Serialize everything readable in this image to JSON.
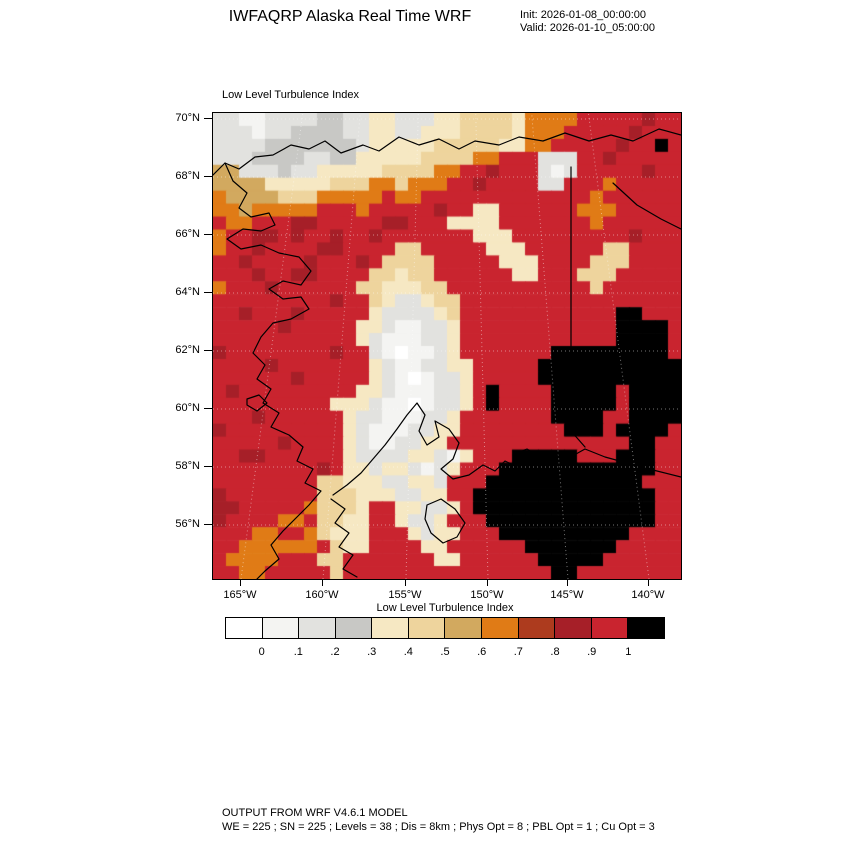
{
  "header": {
    "title": "IWFAQRP Alaska Real Time WRF",
    "init_label": "Init: 2026-01-08_00:00:00",
    "valid_label": "Valid: 2026-01-10_05:00:00"
  },
  "plot": {
    "field_title": "Low Level Turbulence Index"
  },
  "colorbar": {
    "title": "Low Level Turbulence Index",
    "labels": [
      "0",
      ".1",
      ".2",
      ".3",
      ".4",
      ".5",
      ".6",
      ".7",
      ".8",
      ".9",
      "1"
    ]
  },
  "footer": {
    "line1": "OUTPUT FROM WRF V4.6.1 MODEL",
    "line2": "WE = 225 ; SN = 225 ; Levels = 38 ; Dis = 8km ; Phys Opt = 8 ; PBL Opt = 1 ; Cu Opt = 3"
  },
  "chart_data": {
    "type": "heatmap",
    "title": "Low Level Turbulence Index",
    "lat_axis": {
      "ticks": [
        "70°N",
        "68°N",
        "66°N",
        "64°N",
        "62°N",
        "60°N",
        "58°N",
        "56°N"
      ],
      "approx_range_deg_n": [
        54.1,
        70.2
      ]
    },
    "lon_axis": {
      "ticks": [
        "165°W",
        "160°W",
        "155°W",
        "150°W",
        "145°W",
        "140°W"
      ],
      "approx_range_deg_w": [
        167.0,
        138.0
      ]
    },
    "levels": [
      0,
      0.1,
      0.2,
      0.3,
      0.4,
      0.5,
      0.6,
      0.7,
      0.8,
      0.9,
      1
    ],
    "palette": [
      "#ffffff",
      "#f4f4f2",
      "#e2e2df",
      "#c8c8c5",
      "#f6e8c3",
      "#eed49d",
      "#d2a95f",
      "#e07b16",
      "#ad3b1e",
      "#a61f28",
      "#c9242f",
      "#000000"
    ],
    "grid_encoding": "36x36 downsampled approximation of the plotted field; chars 0-9,a,b index palette entries 0-11 (a = 0.9-1.0 red, b = >1 black)",
    "grid_rows": [
      "2211222233224422244555547777aaaaa9aa",
      "222122333322442244455554777aaaaa9aaa",
      "22223333333244444555554477aaaaa9aaba",
      "2223333223344444555577aaa222aa9aaaaa",
      "6622232244444555577aa9aaa212aaaaa9aa",
      "666644444555775777aa9aaaa22aaa7aaaaa",
      "7666655577777a77aaaaaaaaaaaaa7aaaaaa",
      "77677777aaa7aaaaa9aa44aaaaaa777aaaaa",
      "a77aaa99aaaaa99aaa4444aaaaaaa7aaaaaa",
      "7aa99a9aa9aa9aaaaaaa444aaaaaaaaa9aaa",
      "7aa9aaaa99aaaa55aaaaa444aaaaaa55aaaa",
      "aa9aaaa9aaa9a5555aaaaa444aaaa555aaaa",
      "aaa9aa99aaaa55455aaaaaa44aaa555aaaaa",
      "7aaa9aaaaaa5544455aaaaaaaaaaa5aaaaaa",
      "aaaaaaaaa9aa5422455aaaaaaaaaaaaaaaaa",
      "aa9aaa9aaaaa4222245aaaaaaaaaaaabbaaa",
      "aaaaa9aaaaa44211224aaaaaaaaaaaabbbba",
      "aaaaaaaaaaa42111224aaaaaaaaaaaabbbba",
      "9aaaaaaaa9aa2101124aaaaaaabbbbbbbbba",
      "aaaa9aaaaaaa42112244aaaaabbbbbbbbbbb",
      "aaaaaa9aaaaa42101224aaaaabbbbbbbbbbb",
      "a9aaaaaaaaa442111224abaaaabbbbbabbbb",
      "aaaaaaaaa44421101224abaaaabbbbbabbbb",
      "aaa9aaaaaa422111224aaaaaaabbbbaabbbb",
      "9aaaaaaaaa421112244aaaaaaaabbbabbbba",
      "aaaaa9aaaa421122 44aaaaaaaaaaaaaabbaa",
      "aa99aaaaaa4222244214aaabbbbbaaabbbaa",
      "aaaaaaaa9a442442124aaabbbbbbbbbbbbaa",
      "aaaaaaaa5544422442aaabbbbbbbbbbbbaaa",
      "9aaaaaaa5554442244aabbbbbbbbbbbbbbaa",
      "99aaaaa75554aa44224abbbbbbbbbbbbbbaa",
      "9aaaa77a5544aa4224aaabbbbbbbbbbbbbaa",
      "aaa77aa75444aaa4244aaabbbbbbbbbbaaaa",
      "aa777777a544aaaa44aaaaaabbbbbbbaaaaa",
      "a7777aaa55aaaaaaa44aaaaaabbbbbaaaaaa",
      "aa77aaaaa5aaaaaaaaaaaaaaaabbaaaaaaaa"
    ],
    "coastlines": [
      "M0,62 L12,50 L26,56 L42,44 L60,42 L78,32 L96,36 L112,28 L128,40 L150,32 L166,38 L186,24 L206,32 L226,26 L246,36 L262,28 L286,32 L306,24 L330,28 L352,20 L376,28 L398,22 L420,28 L446,16 L468,22",
      "M12,50 L20,68 L34,80 L26,95 L38,104 L56,100 L62,112 L48,118 L30,116 L14,126 L28,136 L48,132 L66,140 L86,144 L98,158 L88,172 L70,168 L56,176 L70,186 L88,184 L96,196 L78,206 L60,210 L48,224 L40,240 L52,252 L44,266 L58,276 L50,290 L66,300 L58,314 L76,322 L90,334 L84,348 L100,356 L92,370 L108,378 L96,392 L84,404 L70,418 L58,432 L66,446 L52,458 L44,466",
      "M120,382 L134,372 L148,360 L160,346 L172,332 L184,316 L194,302 L204,290 L212,302 L206,318 L214,332 L226,324 L222,308 L236,316 L246,330 L240,346 L228,356 L240,366 L256,362 L270,352 L282,358 L292,348 L304,354 L300,342 L314,336 L326,344 L340,338 L354,346 L372,336 L392,344 L414,350 L436,356 L468,364",
      "M118,386 L132,396 L122,410 L136,420 L126,434 L140,442 L130,456 L144,464",
      "M214,392 L228,386 L242,396 L252,410 L244,424 L230,430 L218,420 L212,406 Z",
      "M34,286 L46,282 L54,290 L44,298 L34,292 Z"
    ],
    "borders": [
      "M358,54 L358,318 L372,334",
      "M400,70 L424,92 L448,106 L468,116"
    ]
  }
}
